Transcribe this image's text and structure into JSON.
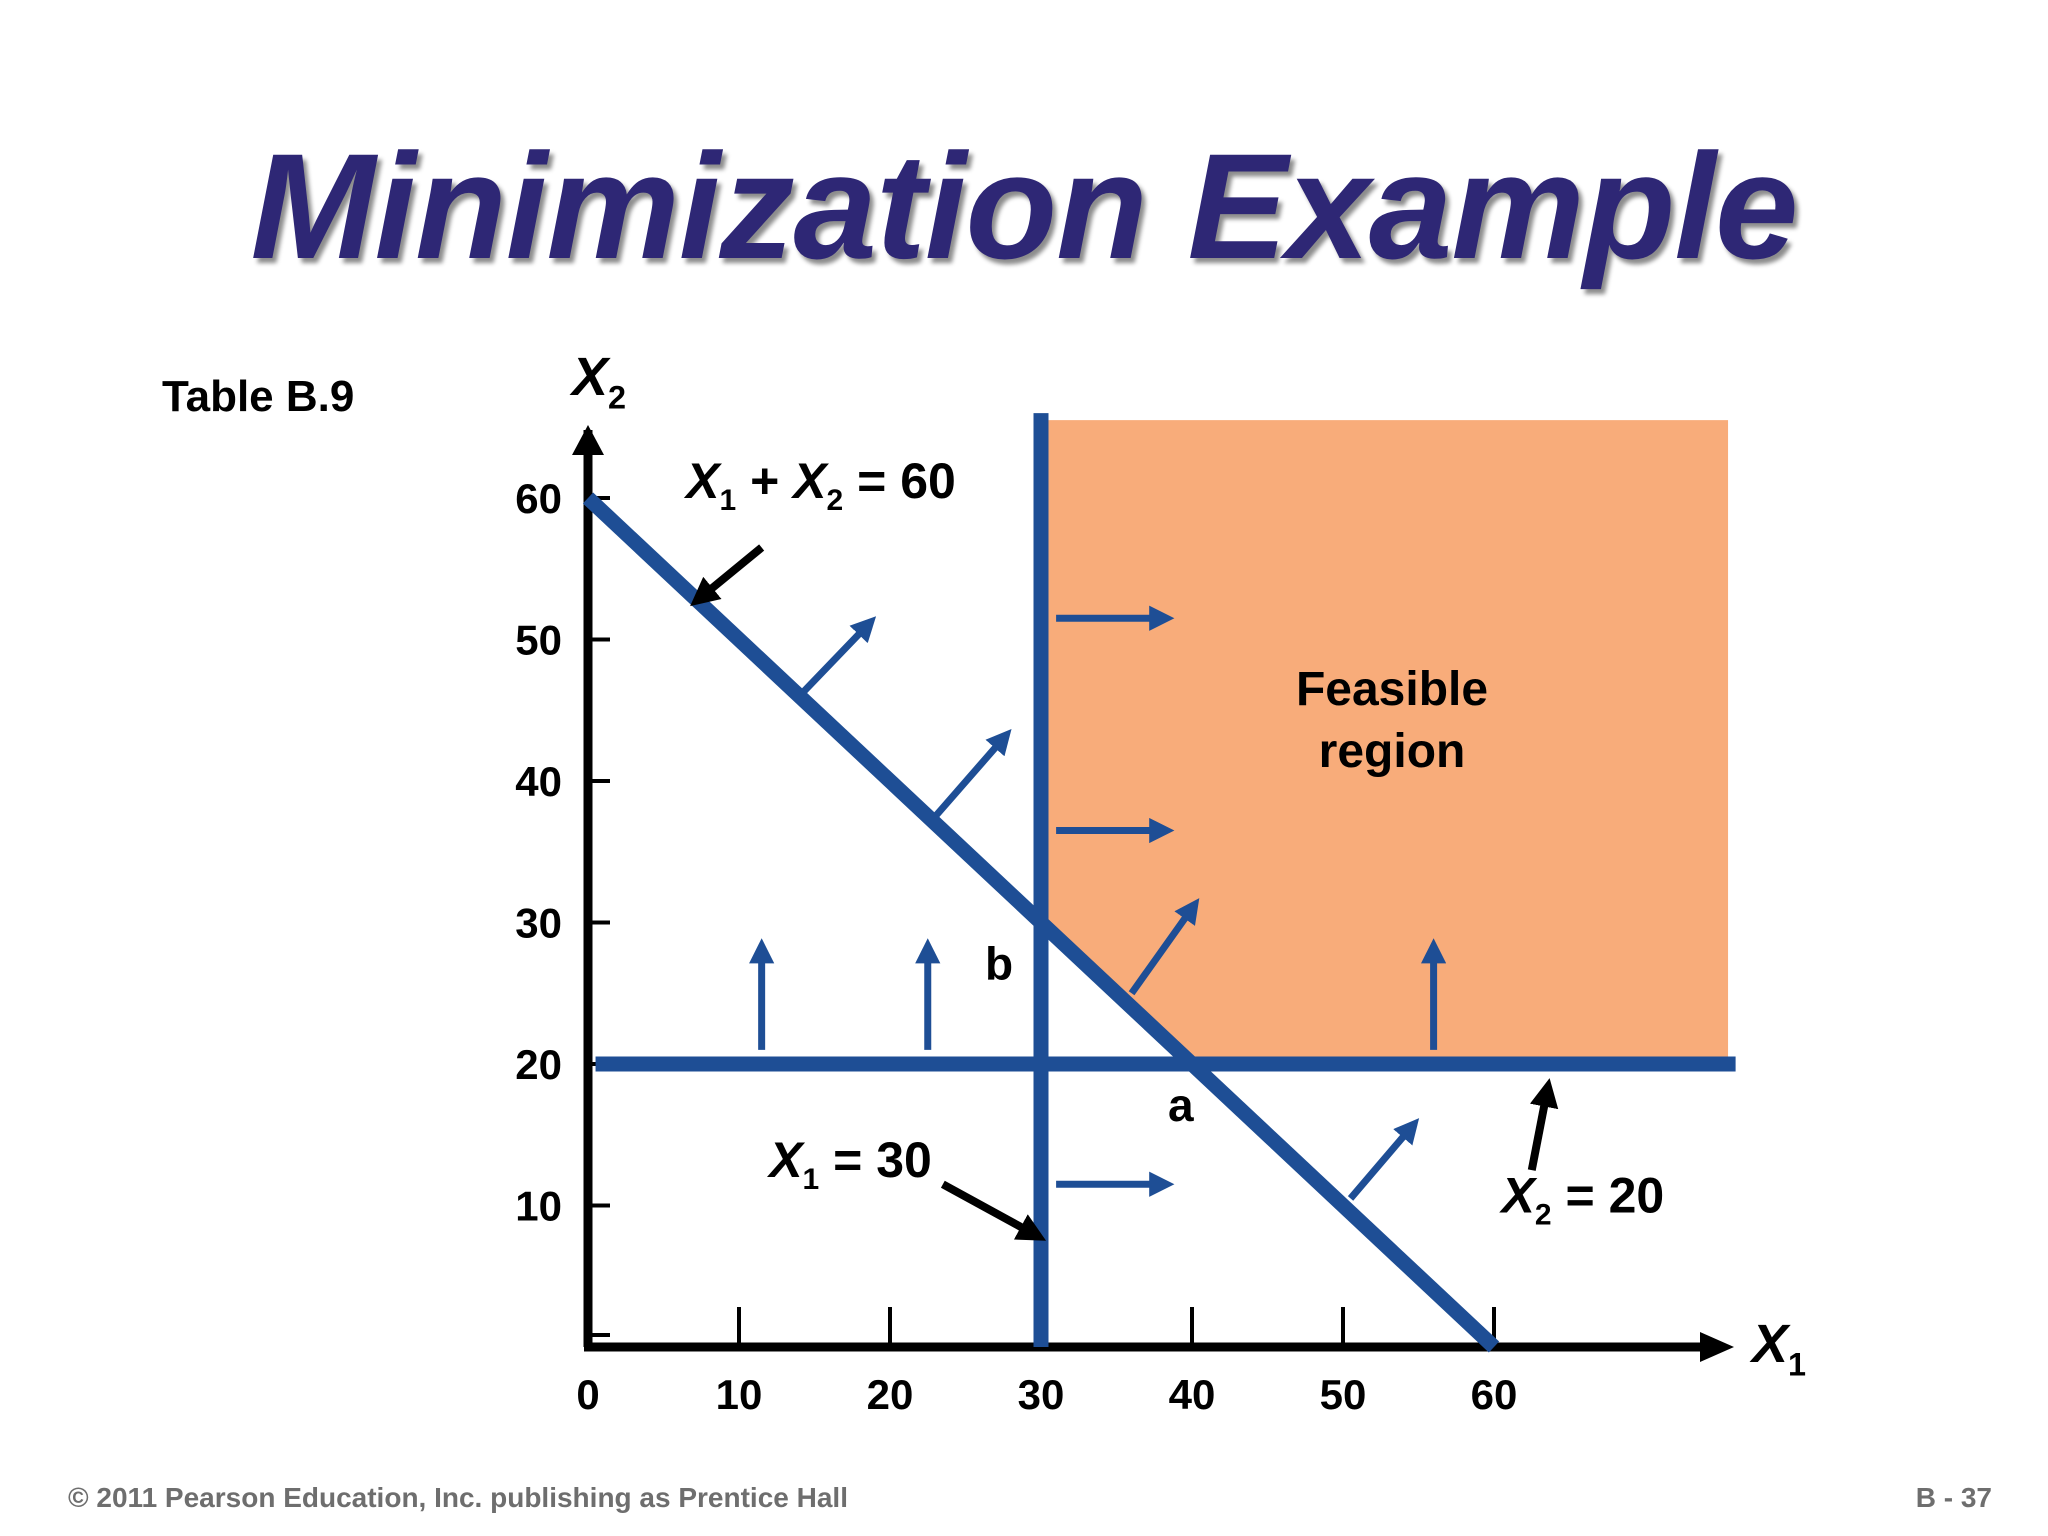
{
  "title": "Minimization Example",
  "table_ref": "Table B.9",
  "footer": {
    "copyright": "© 2011 Pearson Education, Inc. publishing as Prentice Hall",
    "page": "B - 37"
  },
  "colors": {
    "title": "#2e2775",
    "line": "#1e4e95",
    "feasible": "#f8ac7a",
    "axis": "#000000"
  },
  "chart_data": {
    "type": "line",
    "x_axis_label": "X1",
    "y_axis_label": "X2",
    "xlim": [
      0,
      75
    ],
    "ylim": [
      0,
      62
    ],
    "x_ticks": [
      0,
      10,
      20,
      30,
      40,
      50,
      60
    ],
    "y_ticks": [
      10,
      20,
      30,
      40,
      50,
      60
    ],
    "constraints": [
      {
        "name": "X1 + X2 = 60",
        "from": [
          0,
          60
        ],
        "to": [
          60,
          0
        ]
      },
      {
        "name": "X1 = 30",
        "from": [
          30,
          0
        ],
        "to": [
          30,
          66
        ]
      },
      {
        "name": "X2 = 20",
        "from": [
          0.5,
          20
        ],
        "to": [
          76,
          20
        ]
      }
    ],
    "feasible_region": {
      "label": [
        "Feasible",
        "region"
      ],
      "polygon": [
        [
          30,
          65.5
        ],
        [
          75.5,
          65.5
        ],
        [
          75.5,
          20
        ],
        [
          40,
          20
        ],
        [
          30,
          30
        ]
      ]
    },
    "corner_points": [
      {
        "label": "a",
        "x": 40,
        "y": 20
      },
      {
        "label": "b",
        "x": 30,
        "y": 30
      }
    ],
    "direction_arrows": [
      {
        "from": [
          14,
          46
        ],
        "to": [
          18.5,
          51
        ]
      },
      {
        "from": [
          23,
          37.5
        ],
        "to": [
          27.5,
          43
        ]
      },
      {
        "from": [
          36,
          25
        ],
        "to": [
          40,
          31
        ]
      },
      {
        "from": [
          50.5,
          10.5
        ],
        "to": [
          54.5,
          15.5
        ]
      },
      {
        "from": [
          31,
          51.5
        ],
        "to": [
          38,
          51.5
        ]
      },
      {
        "from": [
          31,
          36.5
        ],
        "to": [
          38,
          36.5
        ]
      },
      {
        "from": [
          31,
          11.5
        ],
        "to": [
          38,
          11.5
        ]
      },
      {
        "from": [
          11.5,
          21
        ],
        "to": [
          11.5,
          28
        ]
      },
      {
        "from": [
          22.5,
          21
        ],
        "to": [
          22.5,
          28
        ]
      },
      {
        "from": [
          56,
          21
        ],
        "to": [
          56,
          28
        ]
      }
    ],
    "annotations": [
      {
        "text": "X1 + X2 = 60",
        "base": "X",
        "sub1": "1",
        "mid": " + X",
        "sub2": "2",
        "tail": " = 60",
        "x": 6.5,
        "y": 60,
        "pointer_from": [
          11.5,
          56.5
        ],
        "pointer_to": [
          7.5,
          53
        ]
      },
      {
        "text": "X1 = 30",
        "base": "X",
        "sub1": "1",
        "mid": " = 30",
        "x": 12,
        "y": 12,
        "pointer_from": [
          23.5,
          11.5
        ],
        "pointer_to": [
          29.5,
          8
        ]
      },
      {
        "text": "X2 = 20",
        "base": "X",
        "sub1": "2",
        "mid": " = 20",
        "x": 60.5,
        "y": 9.5,
        "pointer_from": [
          62.5,
          12.5
        ],
        "pointer_to": [
          63.5,
          18
        ]
      }
    ]
  }
}
